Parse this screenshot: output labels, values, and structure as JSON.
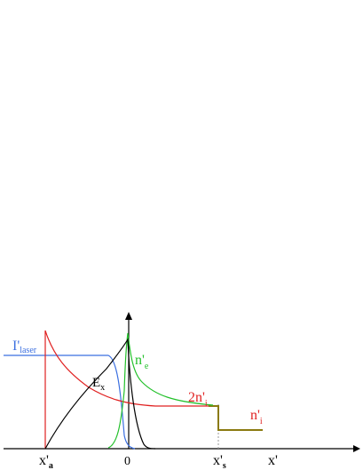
{
  "colors": {
    "laser": "#3b6fe0",
    "ion": "#e02020",
    "electron": "#22c02a",
    "field": "#000000",
    "step": "#8a7a10",
    "axis": "#000000",
    "guide": "#9a9a9a"
  },
  "labels": {
    "laser": {
      "main": "I'",
      "sub": "laser"
    },
    "field": {
      "main": "E",
      "sub": "x"
    },
    "electron": {
      "main": "n'",
      "sub": "e"
    },
    "ion_double": {
      "main": "2n'",
      "sub": "i"
    },
    "ion": {
      "main": "n'",
      "sub": "i"
    }
  },
  "axis": {
    "x_label": "x'",
    "ticks": [
      {
        "main": "x'",
        "sub": "a"
      },
      {
        "main": "0",
        "sub": ""
      },
      {
        "main": "x'",
        "sub": "s"
      }
    ]
  }
}
